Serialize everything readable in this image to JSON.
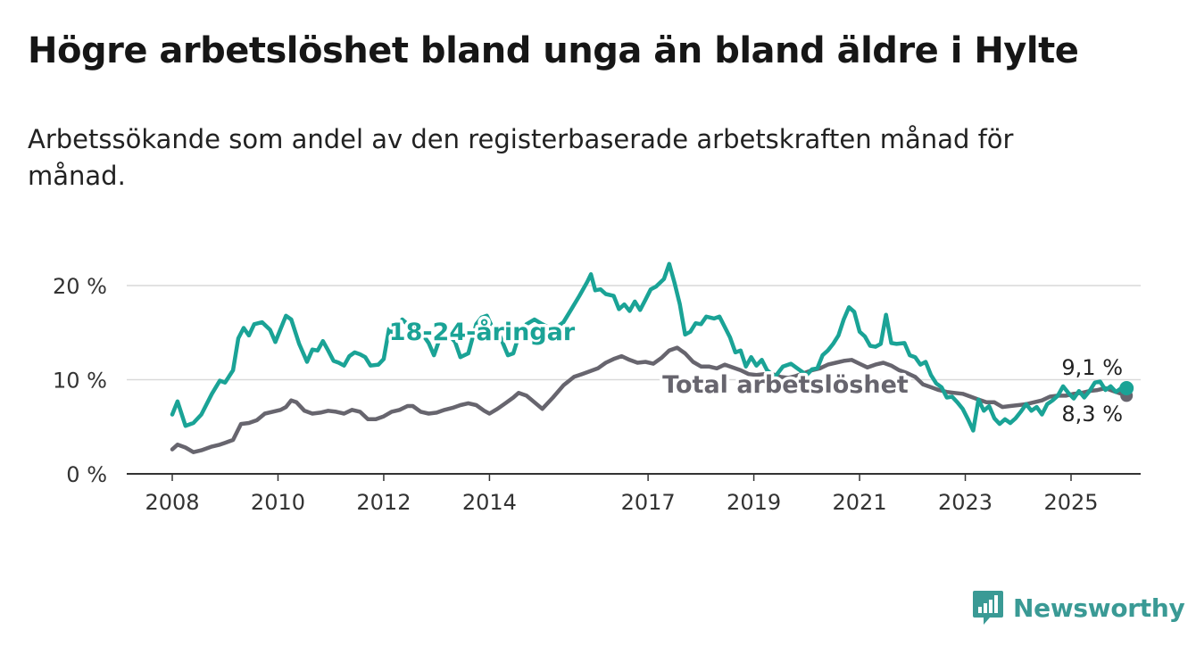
{
  "title": "Högre arbetslöshet bland unga än bland äldre i Hylte",
  "subtitle": "Arbetssökande som andel av den registerbaserade arbetskraften månad för månad.",
  "brand": {
    "name": "Newsworthy",
    "icon": "newsworthy-logo-icon",
    "color": "#3a9a95"
  },
  "chart_data": {
    "type": "line",
    "ylim": [
      0,
      22.5
    ],
    "y_ticks": [
      {
        "value": 0,
        "label": "0 %"
      },
      {
        "value": 10,
        "label": "10 %"
      },
      {
        "value": 20,
        "label": "20 %"
      }
    ],
    "x_ticks": [
      "2008",
      "2010",
      "2012",
      "2014",
      "2017",
      "2019",
      "2021",
      "2023",
      "2025"
    ],
    "xlim": [
      2007.75,
      2026.3
    ],
    "grid": true,
    "series": [
      {
        "name": "18-24-åringar",
        "color": "#1aa396",
        "end_label": "9,1 %",
        "points": [
          [
            2008.0,
            6.3
          ],
          [
            2008.1,
            7.7
          ],
          [
            2008.25,
            5.1
          ],
          [
            2008.4,
            5.4
          ],
          [
            2008.55,
            6.3
          ],
          [
            2008.75,
            8.5
          ],
          [
            2008.9,
            9.9
          ],
          [
            2009.0,
            9.7
          ],
          [
            2009.15,
            11.0
          ],
          [
            2009.25,
            14.4
          ],
          [
            2009.35,
            15.5
          ],
          [
            2009.45,
            14.7
          ],
          [
            2009.55,
            15.9
          ],
          [
            2009.7,
            16.1
          ],
          [
            2009.85,
            15.3
          ],
          [
            2009.95,
            14.0
          ],
          [
            2010.05,
            15.4
          ],
          [
            2010.15,
            16.8
          ],
          [
            2010.25,
            16.4
          ],
          [
            2010.4,
            13.8
          ],
          [
            2010.55,
            11.9
          ],
          [
            2010.65,
            13.2
          ],
          [
            2010.75,
            13.1
          ],
          [
            2010.85,
            14.1
          ],
          [
            2010.95,
            13.1
          ],
          [
            2011.05,
            12.0
          ],
          [
            2011.15,
            11.8
          ],
          [
            2011.25,
            11.5
          ],
          [
            2011.35,
            12.5
          ],
          [
            2011.45,
            12.9
          ],
          [
            2011.55,
            12.7
          ],
          [
            2011.65,
            12.4
          ],
          [
            2011.75,
            11.5
          ],
          [
            2011.9,
            11.6
          ],
          [
            2012.0,
            12.2
          ],
          [
            2012.1,
            15.4
          ],
          [
            2012.2,
            14.8
          ],
          [
            2012.35,
            16.4
          ],
          [
            2012.45,
            15.9
          ],
          [
            2012.55,
            16.1
          ],
          [
            2012.7,
            15.1
          ],
          [
            2012.85,
            13.9
          ],
          [
            2012.95,
            12.6
          ],
          [
            2013.05,
            14.2
          ],
          [
            2013.2,
            15.0
          ],
          [
            2013.35,
            14.0
          ],
          [
            2013.45,
            12.4
          ],
          [
            2013.6,
            12.8
          ],
          [
            2013.75,
            15.9
          ],
          [
            2013.85,
            16.6
          ],
          [
            2013.95,
            16.8
          ],
          [
            2014.05,
            15.6
          ],
          [
            2014.2,
            14.6
          ],
          [
            2014.35,
            12.6
          ],
          [
            2014.45,
            12.8
          ],
          [
            2014.55,
            14.6
          ],
          [
            2014.7,
            15.9
          ],
          [
            2014.85,
            16.4
          ],
          [
            2015.0,
            15.9
          ],
          [
            2015.2,
            15.3
          ],
          [
            2015.4,
            16.1
          ],
          [
            2015.55,
            17.5
          ],
          [
            2015.7,
            18.9
          ],
          [
            2015.85,
            20.4
          ],
          [
            2015.92,
            21.2
          ],
          [
            2016.0,
            19.5
          ],
          [
            2016.1,
            19.6
          ],
          [
            2016.2,
            19.1
          ],
          [
            2016.35,
            18.9
          ],
          [
            2016.45,
            17.5
          ],
          [
            2016.55,
            18.0
          ],
          [
            2016.65,
            17.3
          ],
          [
            2016.75,
            18.3
          ],
          [
            2016.85,
            17.4
          ],
          [
            2016.95,
            18.5
          ],
          [
            2017.05,
            19.6
          ],
          [
            2017.15,
            19.9
          ],
          [
            2017.3,
            20.7
          ],
          [
            2017.4,
            22.3
          ],
          [
            2017.5,
            20.3
          ],
          [
            2017.6,
            18.0
          ],
          [
            2017.7,
            14.8
          ],
          [
            2017.8,
            15.1
          ],
          [
            2017.9,
            16.0
          ],
          [
            2018.0,
            15.9
          ],
          [
            2018.1,
            16.7
          ],
          [
            2018.25,
            16.5
          ],
          [
            2018.35,
            16.7
          ],
          [
            2018.45,
            15.6
          ],
          [
            2018.55,
            14.5
          ],
          [
            2018.65,
            12.9
          ],
          [
            2018.75,
            13.1
          ],
          [
            2018.85,
            11.4
          ],
          [
            2018.95,
            12.4
          ],
          [
            2019.05,
            11.5
          ],
          [
            2019.15,
            12.1
          ],
          [
            2019.25,
            11.0
          ],
          [
            2019.4,
            10.3
          ],
          [
            2019.55,
            11.4
          ],
          [
            2019.7,
            11.7
          ],
          [
            2019.85,
            11.1
          ],
          [
            2020.0,
            10.5
          ],
          [
            2020.1,
            11.1
          ],
          [
            2020.2,
            11.2
          ],
          [
            2020.3,
            12.6
          ],
          [
            2020.4,
            13.1
          ],
          [
            2020.5,
            13.8
          ],
          [
            2020.6,
            14.7
          ],
          [
            2020.7,
            16.4
          ],
          [
            2020.8,
            17.7
          ],
          [
            2020.9,
            17.2
          ],
          [
            2021.0,
            15.1
          ],
          [
            2021.1,
            14.6
          ],
          [
            2021.2,
            13.6
          ],
          [
            2021.3,
            13.5
          ],
          [
            2021.4,
            13.8
          ],
          [
            2021.5,
            16.9
          ],
          [
            2021.6,
            13.9
          ],
          [
            2021.7,
            13.8
          ],
          [
            2021.85,
            13.9
          ],
          [
            2021.95,
            12.6
          ],
          [
            2022.05,
            12.4
          ],
          [
            2022.15,
            11.6
          ],
          [
            2022.25,
            11.9
          ],
          [
            2022.35,
            10.5
          ],
          [
            2022.45,
            9.6
          ],
          [
            2022.55,
            9.2
          ],
          [
            2022.65,
            8.1
          ],
          [
            2022.75,
            8.2
          ],
          [
            2022.85,
            7.6
          ],
          [
            2022.95,
            6.9
          ],
          [
            2023.05,
            5.8
          ],
          [
            2023.15,
            4.6
          ],
          [
            2023.25,
            7.9
          ],
          [
            2023.35,
            6.7
          ],
          [
            2023.45,
            7.2
          ],
          [
            2023.55,
            5.9
          ],
          [
            2023.65,
            5.3
          ],
          [
            2023.75,
            5.8
          ],
          [
            2023.85,
            5.4
          ],
          [
            2023.95,
            5.9
          ],
          [
            2024.05,
            6.6
          ],
          [
            2024.15,
            7.4
          ],
          [
            2024.25,
            6.7
          ],
          [
            2024.35,
            7.1
          ],
          [
            2024.45,
            6.3
          ],
          [
            2024.55,
            7.4
          ],
          [
            2024.65,
            7.8
          ],
          [
            2024.75,
            8.3
          ],
          [
            2024.85,
            9.3
          ],
          [
            2024.95,
            8.6
          ],
          [
            2025.05,
            8.0
          ],
          [
            2025.15,
            8.8
          ],
          [
            2025.25,
            8.1
          ],
          [
            2025.35,
            8.8
          ],
          [
            2025.45,
            9.7
          ],
          [
            2025.55,
            9.8
          ],
          [
            2025.65,
            8.9
          ],
          [
            2025.75,
            9.3
          ],
          [
            2025.85,
            8.7
          ],
          [
            2025.95,
            9.1
          ],
          [
            2026.05,
            9.1
          ]
        ]
      },
      {
        "name": "Total arbetslöshet",
        "color": "#67656e",
        "end_label": "8,3 %",
        "points": [
          [
            2008.0,
            2.6
          ],
          [
            2008.1,
            3.1
          ],
          [
            2008.25,
            2.8
          ],
          [
            2008.4,
            2.3
          ],
          [
            2008.55,
            2.5
          ],
          [
            2008.75,
            2.9
          ],
          [
            2008.9,
            3.1
          ],
          [
            2009.0,
            3.3
          ],
          [
            2009.15,
            3.6
          ],
          [
            2009.3,
            5.3
          ],
          [
            2009.45,
            5.4
          ],
          [
            2009.6,
            5.7
          ],
          [
            2009.75,
            6.4
          ],
          [
            2009.9,
            6.6
          ],
          [
            2010.05,
            6.8
          ],
          [
            2010.15,
            7.1
          ],
          [
            2010.25,
            7.8
          ],
          [
            2010.35,
            7.6
          ],
          [
            2010.5,
            6.7
          ],
          [
            2010.65,
            6.4
          ],
          [
            2010.8,
            6.5
          ],
          [
            2010.95,
            6.7
          ],
          [
            2011.1,
            6.6
          ],
          [
            2011.25,
            6.4
          ],
          [
            2011.4,
            6.8
          ],
          [
            2011.55,
            6.6
          ],
          [
            2011.7,
            5.8
          ],
          [
            2011.85,
            5.8
          ],
          [
            2012.0,
            6.1
          ],
          [
            2012.15,
            6.6
          ],
          [
            2012.3,
            6.8
          ],
          [
            2012.45,
            7.2
          ],
          [
            2012.55,
            7.2
          ],
          [
            2012.7,
            6.6
          ],
          [
            2012.85,
            6.4
          ],
          [
            2013.0,
            6.5
          ],
          [
            2013.15,
            6.8
          ],
          [
            2013.3,
            7.0
          ],
          [
            2013.45,
            7.3
          ],
          [
            2013.6,
            7.5
          ],
          [
            2013.75,
            7.3
          ],
          [
            2013.9,
            6.7
          ],
          [
            2014.0,
            6.4
          ],
          [
            2014.15,
            6.9
          ],
          [
            2014.3,
            7.5
          ],
          [
            2014.45,
            8.1
          ],
          [
            2014.55,
            8.6
          ],
          [
            2014.7,
            8.3
          ],
          [
            2014.85,
            7.6
          ],
          [
            2015.0,
            6.9
          ],
          [
            2015.2,
            8.1
          ],
          [
            2015.4,
            9.4
          ],
          [
            2015.6,
            10.3
          ],
          [
            2015.75,
            10.6
          ],
          [
            2015.9,
            10.9
          ],
          [
            2016.05,
            11.2
          ],
          [
            2016.2,
            11.8
          ],
          [
            2016.35,
            12.2
          ],
          [
            2016.5,
            12.5
          ],
          [
            2016.65,
            12.1
          ],
          [
            2016.8,
            11.8
          ],
          [
            2016.95,
            11.9
          ],
          [
            2017.1,
            11.7
          ],
          [
            2017.25,
            12.3
          ],
          [
            2017.4,
            13.1
          ],
          [
            2017.55,
            13.4
          ],
          [
            2017.7,
            12.8
          ],
          [
            2017.85,
            11.9
          ],
          [
            2018.0,
            11.4
          ],
          [
            2018.15,
            11.4
          ],
          [
            2018.3,
            11.2
          ],
          [
            2018.45,
            11.6
          ],
          [
            2018.6,
            11.3
          ],
          [
            2018.75,
            11.0
          ],
          [
            2018.9,
            10.6
          ],
          [
            2019.05,
            10.5
          ],
          [
            2019.2,
            10.6
          ],
          [
            2019.35,
            10.6
          ],
          [
            2019.5,
            10.3
          ],
          [
            2019.65,
            10.2
          ],
          [
            2019.8,
            10.4
          ],
          [
            2019.95,
            10.7
          ],
          [
            2020.1,
            11.0
          ],
          [
            2020.25,
            11.2
          ],
          [
            2020.4,
            11.6
          ],
          [
            2020.55,
            11.8
          ],
          [
            2020.7,
            12.0
          ],
          [
            2020.85,
            12.1
          ],
          [
            2021.0,
            11.7
          ],
          [
            2021.15,
            11.3
          ],
          [
            2021.3,
            11.6
          ],
          [
            2021.45,
            11.8
          ],
          [
            2021.6,
            11.5
          ],
          [
            2021.75,
            11.0
          ],
          [
            2021.9,
            10.7
          ],
          [
            2022.05,
            10.3
          ],
          [
            2022.2,
            9.5
          ],
          [
            2022.35,
            9.2
          ],
          [
            2022.5,
            8.9
          ],
          [
            2022.65,
            8.7
          ],
          [
            2022.8,
            8.6
          ],
          [
            2022.95,
            8.5
          ],
          [
            2023.1,
            8.2
          ],
          [
            2023.25,
            7.9
          ],
          [
            2023.4,
            7.6
          ],
          [
            2023.55,
            7.6
          ],
          [
            2023.7,
            7.1
          ],
          [
            2023.85,
            7.2
          ],
          [
            2024.0,
            7.3
          ],
          [
            2024.15,
            7.4
          ],
          [
            2024.3,
            7.6
          ],
          [
            2024.45,
            7.8
          ],
          [
            2024.6,
            8.2
          ],
          [
            2024.75,
            8.3
          ],
          [
            2024.9,
            8.3
          ],
          [
            2025.05,
            8.5
          ],
          [
            2025.2,
            8.6
          ],
          [
            2025.35,
            8.8
          ],
          [
            2025.5,
            8.9
          ],
          [
            2025.65,
            9.1
          ],
          [
            2025.8,
            8.8
          ],
          [
            2025.95,
            8.5
          ],
          [
            2026.05,
            8.3
          ]
        ]
      }
    ]
  }
}
